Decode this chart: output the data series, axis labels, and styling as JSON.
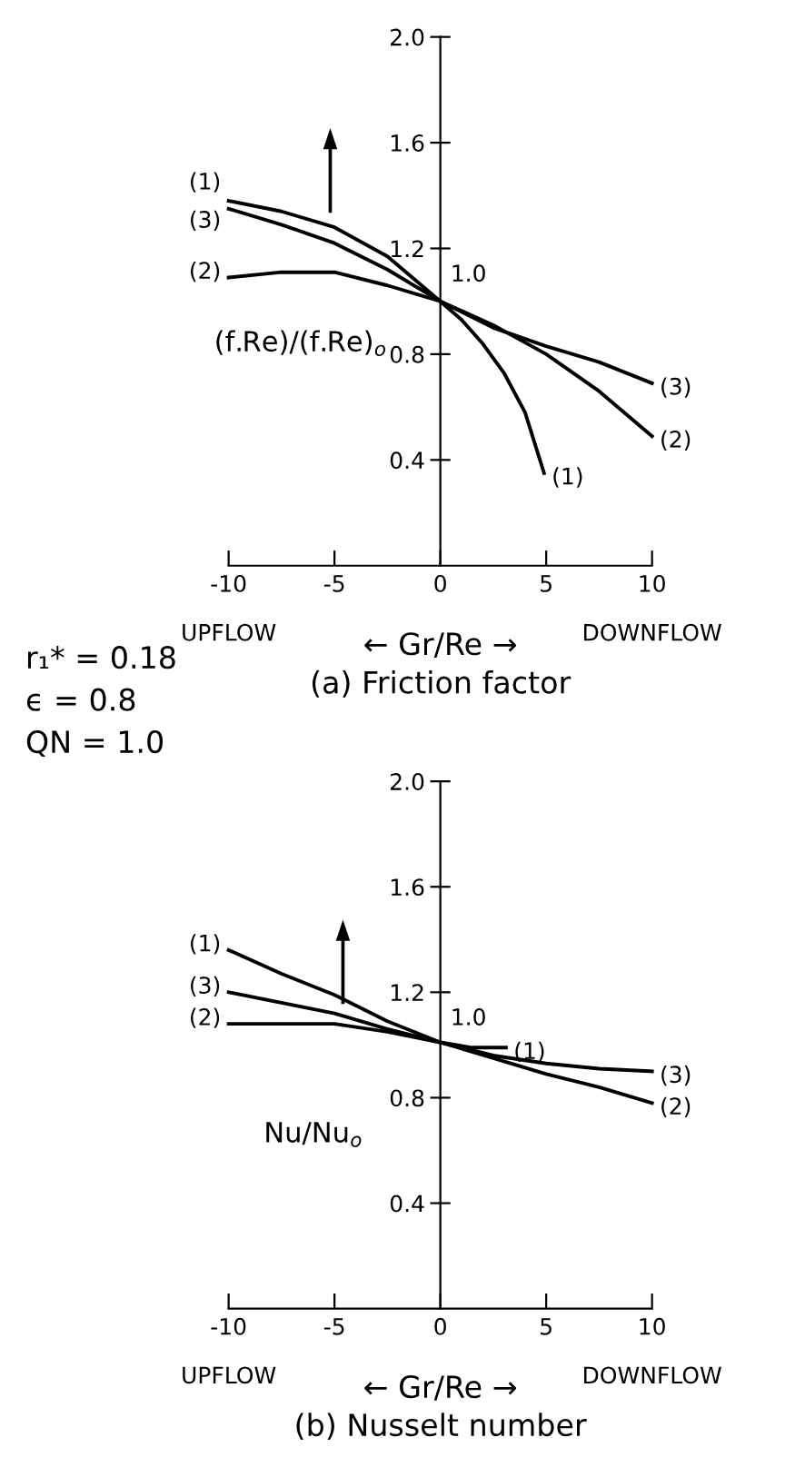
{
  "chart_data": [
    {
      "type": "line",
      "title": "(a) Friction factor",
      "xlabel": "← Gr/Re →",
      "ylabel": "(f.Re)/(f.Re)$_{o}$",
      "xlim": [
        -10,
        10
      ],
      "xticks": [
        -10,
        -5,
        0,
        5,
        10
      ],
      "ylim": [
        0,
        2
      ],
      "yticks": [
        0.4,
        0.8,
        1.2,
        1.6,
        {
          "value": 2,
          "label": "2.0"
        }
      ],
      "grid": false,
      "legend": false,
      "marker": "none",
      "line_style": "solid",
      "annotations": [
        "UPFLOW",
        "DOWNFLOW",
        {
          "text": "1.0",
          "x": 0,
          "y": 1.0
        }
      ],
      "series": [
        {
          "name": "(1)",
          "color": "#000000",
          "x": [
            -10,
            -7.5,
            -5,
            -2.5,
            0,
            1,
            2,
            3,
            4,
            4.9
          ],
          "values": [
            1.38,
            1.34,
            1.28,
            1.17,
            1.0,
            0.93,
            0.84,
            0.73,
            0.58,
            0.35
          ]
        },
        {
          "name": "(2)",
          "color": "#000000",
          "x": [
            -10,
            -7.5,
            -5,
            -2.5,
            0,
            2.5,
            5,
            7.5,
            10
          ],
          "values": [
            1.09,
            1.11,
            1.11,
            1.06,
            1.0,
            0.91,
            0.8,
            0.66,
            0.49
          ]
        },
        {
          "name": "(3)",
          "color": "#000000",
          "x": [
            -10,
            -7.5,
            -5,
            -2.5,
            0,
            2.5,
            5,
            7.5,
            10
          ],
          "values": [
            1.35,
            1.29,
            1.22,
            1.12,
            1.0,
            0.9,
            0.83,
            0.77,
            0.69
          ]
        }
      ]
    },
    {
      "type": "line",
      "title": "(b) Nusselt number",
      "xlabel": "← Gr/Re →",
      "ylabel": "Nu/Nu$_{o}$",
      "xlim": [
        -10,
        10
      ],
      "xticks": [
        -10,
        -5,
        0,
        5,
        10
      ],
      "ylim": [
        0,
        2
      ],
      "yticks": [
        0.4,
        0.8,
        1.2,
        1.6,
        {
          "value": 2,
          "label": "2.0"
        }
      ],
      "grid": false,
      "legend": false,
      "marker": "none",
      "line_style": "solid",
      "annotations": [
        "UPFLOW",
        "DOWNFLOW",
        {
          "text": "1.0",
          "x": 0,
          "y": 1.0
        },
        "r₁* = 0.18",
        "ϵ = 0.8",
        "QN = 1.0"
      ],
      "series": [
        {
          "name": "(1)",
          "color": "#000000",
          "x": [
            -10,
            -7.5,
            -5,
            -2.5,
            0,
            1.5,
            3.1
          ],
          "values": [
            1.36,
            1.27,
            1.19,
            1.09,
            1.01,
            0.99,
            0.99
          ]
        },
        {
          "name": "(2)",
          "color": "#000000",
          "x": [
            -10,
            -5,
            -2.5,
            0,
            2.5,
            5,
            7.5,
            10
          ],
          "values": [
            1.08,
            1.08,
            1.05,
            1.01,
            0.95,
            0.89,
            0.84,
            0.78
          ]
        },
        {
          "name": "(3)",
          "color": "#000000",
          "x": [
            -10,
            -5,
            -2.5,
            0,
            2.5,
            5,
            7.5,
            10
          ],
          "values": [
            1.2,
            1.12,
            1.06,
            1.01,
            0.96,
            0.93,
            0.91,
            0.9
          ]
        }
      ]
    }
  ]
}
